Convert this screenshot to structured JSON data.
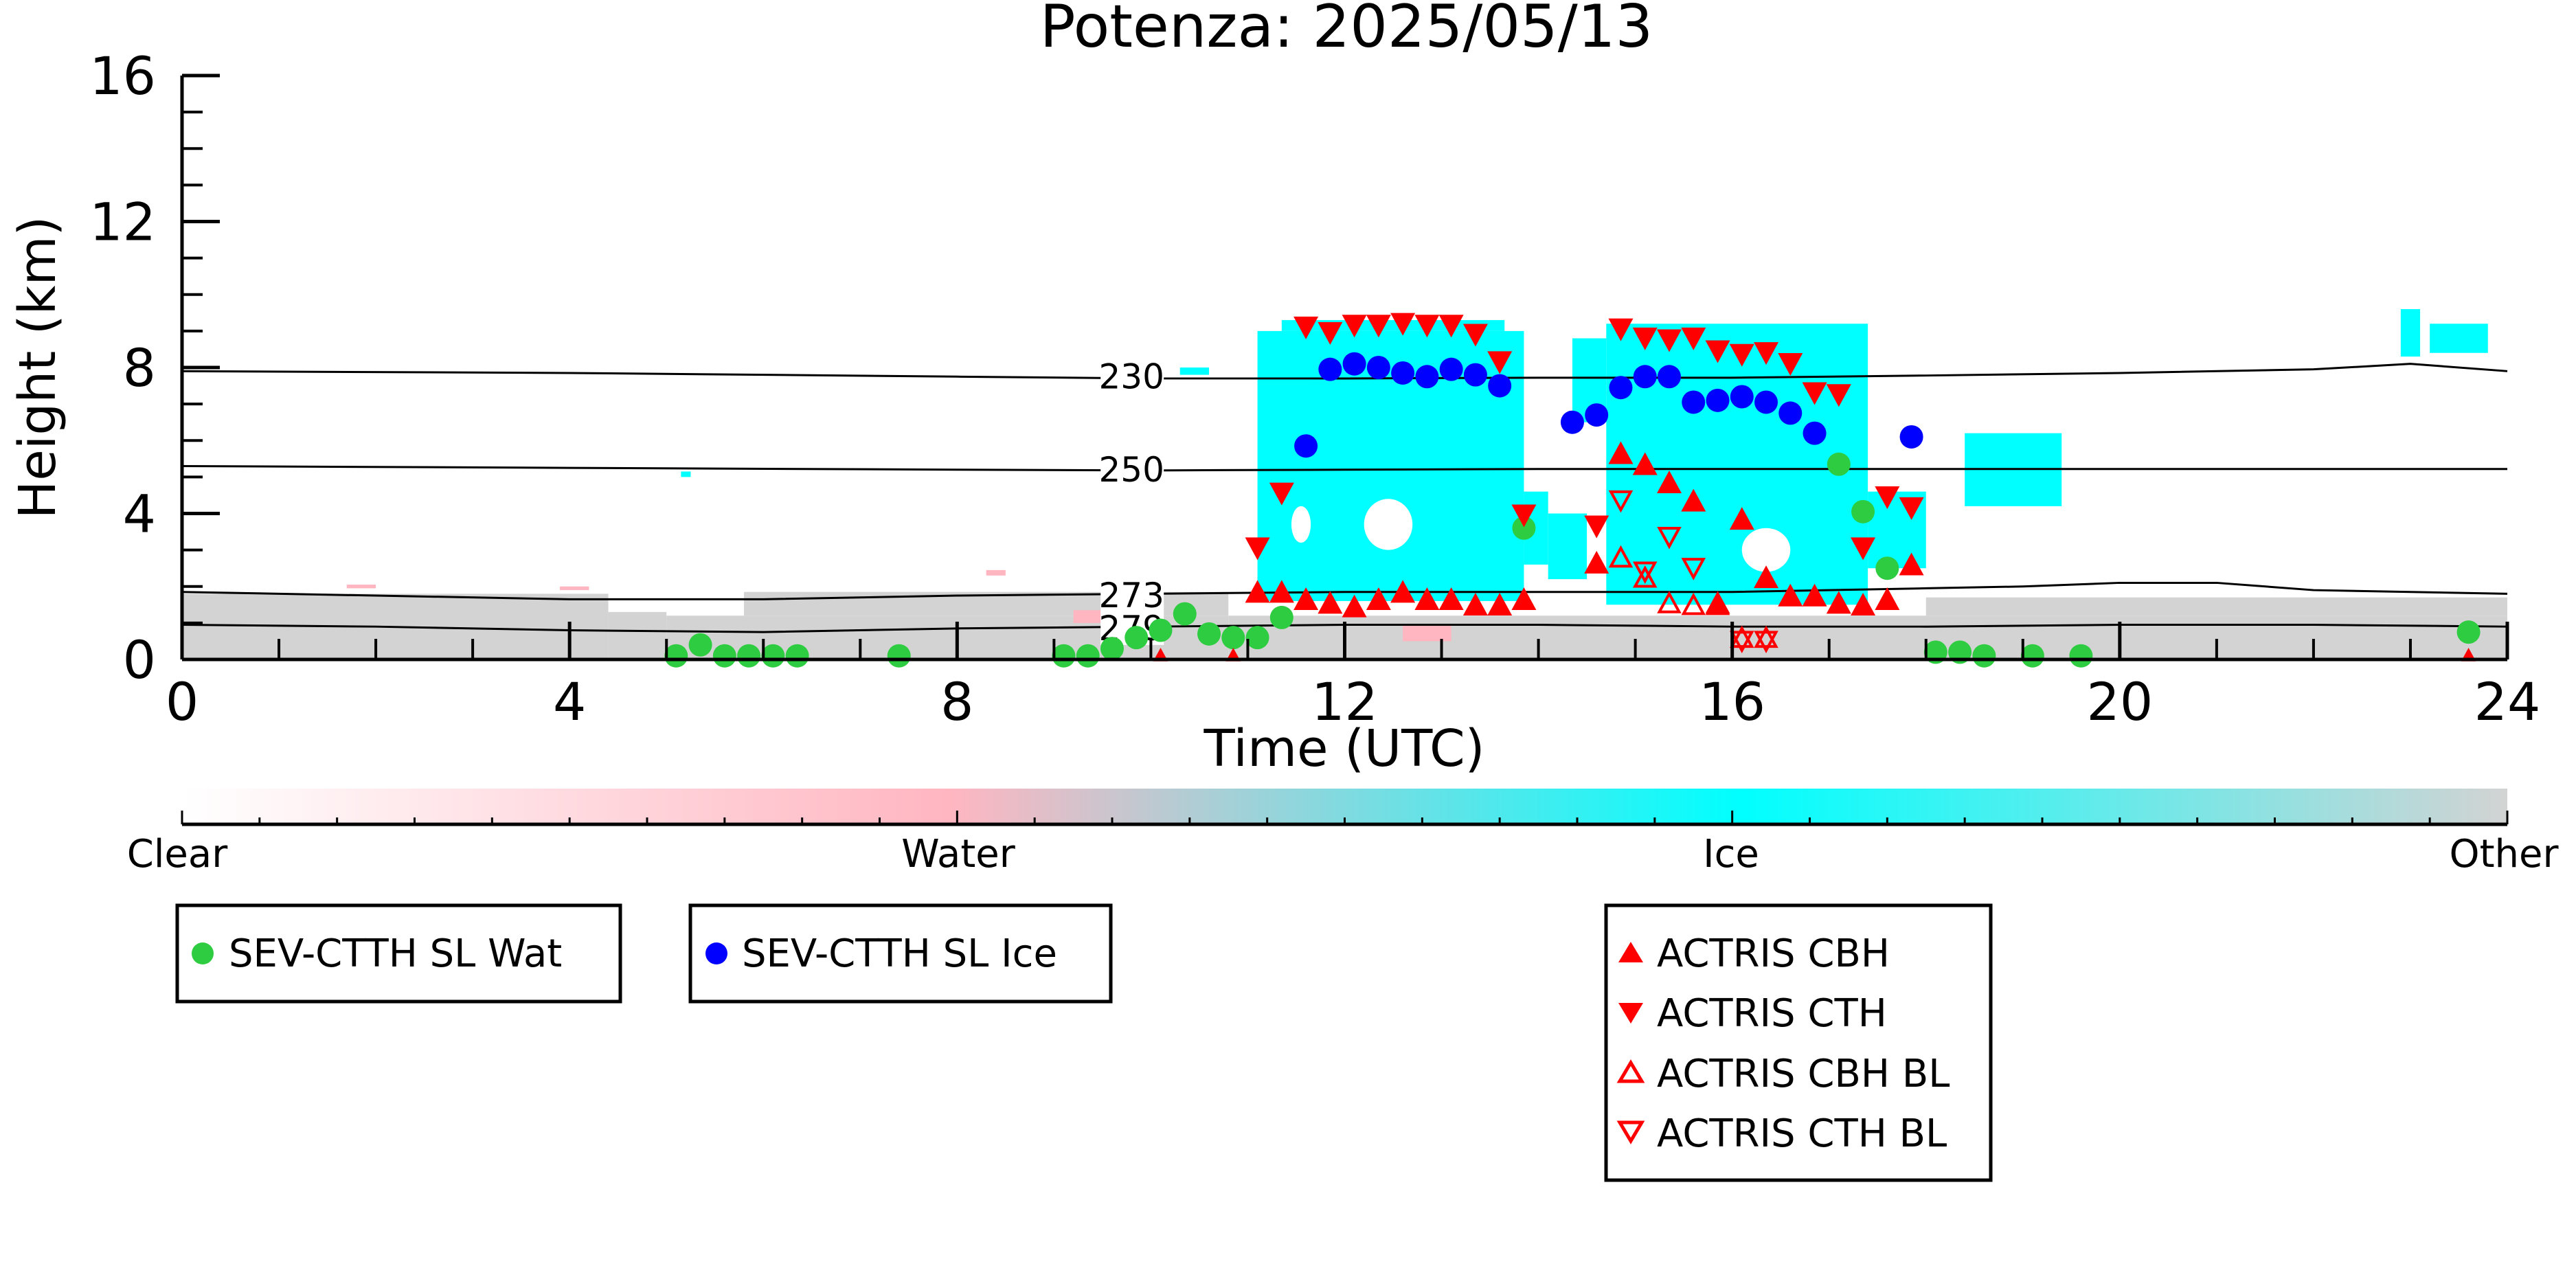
{
  "chart_data": {
    "type": "scatter",
    "title": "Potenza: 2025/05/13",
    "xlabel": "Time (UTC)",
    "ylabel": "Height (km)",
    "xlim": [
      0,
      24
    ],
    "ylim": [
      0,
      16
    ],
    "x_ticks": [
      0,
      4,
      8,
      12,
      16,
      20,
      24
    ],
    "y_ticks": [
      0,
      4,
      8,
      12,
      16
    ],
    "grid": false,
    "colors": {
      "clear": "#ffffff",
      "water": "#ffb6c1",
      "ice": "#00ffff",
      "other": "#d3d3d3",
      "wat_marker": "#2ecc40",
      "ice_marker": "#0000ff",
      "actris": "#ff0000"
    },
    "colorbar": {
      "labels": [
        "Clear",
        "Water",
        "Ice",
        "Other"
      ]
    },
    "isotherms": [
      {
        "label": "230",
        "x": [
          0,
          4,
          8,
          10,
          12,
          14,
          16,
          18,
          20,
          22,
          23,
          24
        ],
        "y": [
          7.9,
          7.85,
          7.75,
          7.7,
          7.7,
          7.72,
          7.72,
          7.78,
          7.85,
          7.95,
          8.1,
          7.9
        ]
      },
      {
        "label": "250",
        "x": [
          0,
          4,
          8,
          10,
          12,
          14,
          16,
          18,
          20,
          22,
          24
        ],
        "y": [
          5.3,
          5.25,
          5.2,
          5.18,
          5.2,
          5.22,
          5.22,
          5.22,
          5.22,
          5.22,
          5.22
        ]
      },
      {
        "label": "273",
        "x": [
          0,
          2,
          4,
          6,
          8,
          10,
          12,
          14,
          16,
          18,
          19,
          20,
          21,
          22,
          24
        ],
        "y": [
          1.85,
          1.75,
          1.65,
          1.65,
          1.75,
          1.8,
          1.85,
          1.85,
          1.85,
          1.95,
          2.0,
          2.1,
          2.1,
          1.9,
          1.8
        ]
      },
      {
        "label": "279",
        "x": [
          0,
          2,
          4,
          6,
          8,
          10,
          12,
          14,
          16,
          18,
          20,
          22,
          24
        ],
        "y": [
          0.95,
          0.9,
          0.8,
          0.75,
          0.85,
          0.9,
          0.95,
          0.95,
          0.9,
          0.9,
          0.95,
          0.95,
          0.9
        ]
      }
    ],
    "series": [
      {
        "name": "SEV-CTTH SL Wat",
        "marker": "circle",
        "x": [
          5.1,
          5.35,
          5.6,
          5.85,
          6.1,
          6.35,
          7.4,
          9.1,
          9.35,
          9.6,
          9.85,
          10.1,
          10.35,
          10.6,
          10.85,
          11.1,
          11.35,
          13.85,
          17.1,
          17.35,
          17.6,
          18.1,
          18.35,
          18.6,
          19.1,
          19.6,
          23.6
        ],
        "y": [
          0.1,
          0.4,
          0.1,
          0.1,
          0.1,
          0.1,
          0.1,
          0.1,
          0.1,
          0.3,
          0.6,
          0.8,
          1.25,
          0.7,
          0.6,
          0.6,
          1.15,
          3.6,
          5.35,
          4.05,
          2.5,
          0.2,
          0.2,
          0.1,
          0.1,
          0.1,
          0.75
        ]
      },
      {
        "name": "SEV-CTTH SL Ice",
        "marker": "circle",
        "x": [
          11.6,
          11.85,
          12.1,
          12.35,
          12.6,
          12.85,
          13.1,
          13.35,
          13.6,
          14.35,
          14.6,
          14.85,
          15.1,
          15.35,
          15.6,
          15.85,
          16.1,
          16.35,
          16.6,
          16.85,
          17.85
        ],
        "y": [
          5.85,
          7.95,
          8.1,
          8.0,
          7.85,
          7.75,
          7.95,
          7.8,
          7.5,
          6.5,
          6.7,
          7.45,
          7.75,
          7.75,
          7.05,
          7.1,
          7.2,
          7.05,
          6.75,
          6.2,
          6.1
        ]
      },
      {
        "name": "ACTRIS CBH",
        "marker": "triangle-up",
        "x": [
          11.1,
          11.35,
          11.6,
          11.85,
          12.1,
          12.35,
          12.6,
          12.85,
          13.1,
          13.35,
          13.6,
          13.85,
          14.6,
          14.85,
          15.1,
          15.35,
          15.6,
          15.85,
          16.1,
          16.35,
          16.6,
          16.85,
          17.1,
          17.35,
          17.6,
          17.85
        ],
        "y": [
          1.8,
          1.8,
          1.6,
          1.5,
          1.4,
          1.6,
          1.8,
          1.6,
          1.6,
          1.45,
          1.45,
          1.6,
          2.6,
          5.6,
          5.3,
          4.8,
          4.3,
          1.5,
          3.8,
          2.2,
          1.7,
          1.7,
          1.5,
          1.45,
          1.6,
          2.55
        ]
      },
      {
        "name": "ACTRIS CTH",
        "marker": "triangle-down",
        "x": [
          11.1,
          11.35,
          11.6,
          11.85,
          12.1,
          12.35,
          12.6,
          12.85,
          13.1,
          13.35,
          13.6,
          13.85,
          14.6,
          14.85,
          15.1,
          15.35,
          15.6,
          15.85,
          16.1,
          16.35,
          16.6,
          16.85,
          17.1,
          17.35,
          17.6,
          17.85
        ],
        "y": [
          3.1,
          4.6,
          9.15,
          9.0,
          9.2,
          9.2,
          9.25,
          9.2,
          9.2,
          8.95,
          8.2,
          4.0,
          3.7,
          9.1,
          8.85,
          8.8,
          8.85,
          8.5,
          8.4,
          8.45,
          8.15,
          7.35,
          7.3,
          3.1,
          4.5,
          4.2
        ]
      },
      {
        "name": "ACTRIS CBH BL",
        "marker": "triangle-up-open",
        "x": [
          14.85,
          15.1,
          15.35,
          15.6,
          15.85,
          16.1,
          16.35
        ],
        "y": [
          2.75,
          2.2,
          1.5,
          1.45,
          1.45,
          0.55,
          0.55
        ]
      },
      {
        "name": "ACTRIS CTH BL",
        "marker": "triangle-down-open",
        "x": [
          14.85,
          15.1,
          15.35,
          15.6,
          16.1,
          16.35
        ],
        "y": [
          4.4,
          2.45,
          3.4,
          2.55,
          0.55,
          0.55
        ]
      }
    ],
    "extra_red_markers": {
      "x": [
        10.1,
        10.85,
        23.6
      ],
      "y": [
        0.02,
        0.02,
        0.02
      ]
    }
  }
}
